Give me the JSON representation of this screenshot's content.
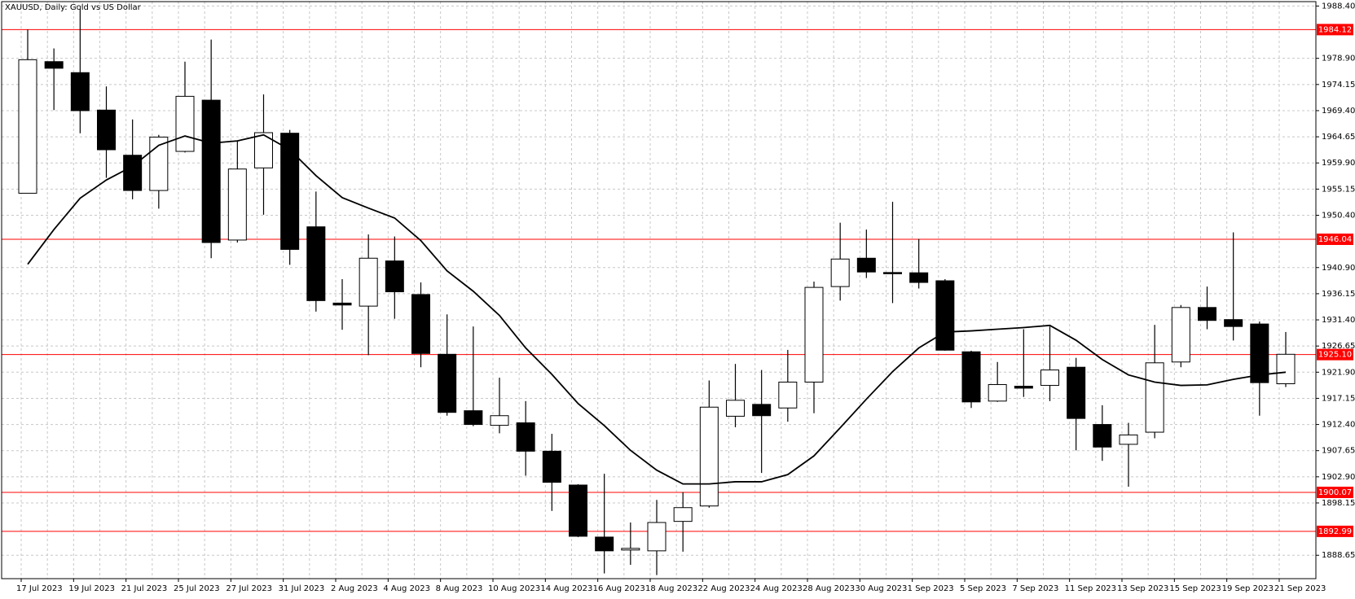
{
  "chart_data": {
    "type": "candlestick",
    "title": "XAUUSD, Daily:  Gold vs US Dollar",
    "categories": [
      "17 Jul 2023",
      null,
      "19 Jul 2023",
      null,
      "21 Jul 2023",
      null,
      "25 Jul 2023",
      null,
      "27 Jul 2023",
      null,
      "31 Jul 2023",
      null,
      "2 Aug 2023",
      null,
      "4 Aug 2023",
      null,
      "8 Aug 2023",
      null,
      "10 Aug 2023",
      null,
      "14 Aug 2023",
      null,
      "16 Aug 2023",
      null,
      "18 Aug 2023",
      null,
      "22 Aug 2023",
      null,
      "24 Aug 2023",
      null,
      "28 Aug 2023",
      null,
      "30 Aug 2023",
      null,
      "1 Sep 2023",
      null,
      "5 Sep 2023",
      null,
      "7 Sep 2023",
      null,
      "11 Sep 2023",
      null,
      "13 Sep 2023",
      null,
      "15 Sep 2023",
      null,
      "19 Sep 2023",
      null,
      "21 Sep 2023"
    ],
    "open": [
      1954.4,
      1978.3,
      1976.3,
      1969.5,
      1961.3,
      1954.9,
      1962.0,
      1971.3,
      1945.9,
      1959.0,
      1965.3,
      1948.3,
      1934.45,
      1933.9,
      1942.1,
      1936.0,
      1925.15,
      1914.9,
      1912.25,
      1912.7,
      1907.55,
      1901.4,
      1891.95,
      1889.6,
      1889.45,
      1894.8,
      1897.6,
      1913.9,
      1916.05,
      1915.4,
      1920.1,
      1937.45,
      1942.6,
      1940.0,
      1939.95,
      1938.5,
      1925.6,
      1916.65,
      1919.35,
      1919.5,
      1922.8,
      1912.4,
      1908.8,
      1911.0,
      1923.75,
      1933.65,
      1931.45,
      1930.65,
      1919.8
    ],
    "high": [
      1984.15,
      1980.7,
      1987.9,
      1973.8,
      1967.8,
      1965.0,
      1978.3,
      1982.3,
      1963.85,
      1972.35,
      1965.9,
      1954.7,
      1938.8,
      1946.9,
      1946.55,
      1938.2,
      1932.4,
      1930.2,
      1920.9,
      1916.65,
      1910.7,
      1901.55,
      1903.45,
      1894.6,
      1898.7,
      1900.1,
      1920.4,
      1923.4,
      1922.3,
      1925.95,
      1938.35,
      1949.05,
      1947.8,
      1952.85,
      1946.1,
      1938.8,
      1925.8,
      1923.75,
      1929.7,
      1930.2,
      1924.5,
      1915.9,
      1912.7,
      1930.5,
      1934.1,
      1937.45,
      1947.3,
      1931.1,
      1929.2
    ],
    "low": [
      1954.4,
      1969.5,
      1965.3,
      1957.2,
      1953.3,
      1951.6,
      1961.8,
      1942.6,
      1945.45,
      1950.5,
      1941.4,
      1932.9,
      1929.6,
      1925.0,
      1931.6,
      1922.8,
      1914.0,
      1912.1,
      1910.8,
      1903.1,
      1896.7,
      1891.95,
      1885.35,
      1886.9,
      1885.05,
      1889.3,
      1897.3,
      1911.9,
      1903.6,
      1912.9,
      1914.45,
      1934.9,
      1939.0,
      1934.45,
      1937.1,
      1925.8,
      1915.4,
      1916.5,
      1917.4,
      1916.65,
      1907.7,
      1905.8,
      1901.1,
      1909.9,
      1922.8,
      1929.7,
      1927.65,
      1914.0,
      1919.2
    ],
    "close": [
      1978.65,
      1977.1,
      1969.4,
      1962.3,
      1954.9,
      1964.6,
      1972.0,
      1945.45,
      1958.8,
      1965.4,
      1944.2,
      1934.9,
      1934.1,
      1942.6,
      1936.5,
      1925.3,
      1914.6,
      1912.4,
      1914.0,
      1907.55,
      1901.9,
      1892.1,
      1889.45,
      1889.9,
      1894.6,
      1897.3,
      1915.55,
      1916.8,
      1914.0,
      1920.1,
      1937.3,
      1942.45,
      1940.1,
      1939.9,
      1938.2,
      1925.9,
      1916.5,
      1919.65,
      1919.0,
      1922.3,
      1913.5,
      1908.3,
      1910.5,
      1923.6,
      1933.65,
      1931.3,
      1930.2,
      1920.0,
      1925.15
    ],
    "up_color": "#ffffff",
    "down_color": "#000000",
    "moving_average": {
      "color": "#000000",
      "values": [
        1941.5,
        1947.8,
        1953.5,
        1956.8,
        1959.3,
        1963.1,
        1964.8,
        1963.5,
        1963.9,
        1965.0,
        1962.3,
        1957.6,
        1953.6,
        1951.7,
        1949.9,
        1945.8,
        1940.3,
        1936.6,
        1932.2,
        1926.3,
        1921.5,
        1916.2,
        1912.2,
        1907.7,
        1904.1,
        1901.6,
        1901.6,
        1902.0,
        1902.0,
        1903.3,
        1906.7,
        1911.8,
        1917.0,
        1922.0,
        1926.3,
        1929.2,
        1929.4,
        1929.7,
        1930.0,
        1930.4,
        1927.7,
        1924.2,
        1921.4,
        1920.1,
        1919.5,
        1919.6,
        1920.6,
        1921.4,
        1921.9
      ]
    },
    "levels": [
      1984.12,
      1946.04,
      {
        "value": 1925.1,
        "label": "1925.10"
      },
      1900.07,
      1892.99
    ],
    "level_color": "#ff0000",
    "ylim": [
      1884.4,
      1989.2
    ],
    "yticks": [
      {
        "value": 1988.4,
        "label": "1988.40"
      },
      {
        "value": 1978.9,
        "label": "1978.90"
      },
      1974.15,
      {
        "value": 1969.4,
        "label": "1969.40"
      },
      1964.65,
      {
        "value": 1959.9,
        "label": "1959.90"
      },
      1955.15,
      {
        "value": 1950.4,
        "label": "1950.40"
      },
      {
        "value": 1940.9,
        "label": "1940.90"
      },
      1936.15,
      {
        "value": 1931.4,
        "label": "1931.40"
      },
      1926.65,
      {
        "value": 1921.9,
        "label": "1921.90"
      },
      1917.15,
      {
        "value": 1912.4,
        "label": "1912.40"
      },
      1907.65,
      {
        "value": 1902.9,
        "label": "1902.90"
      },
      1898.15,
      1888.65
    ],
    "grid": true
  }
}
